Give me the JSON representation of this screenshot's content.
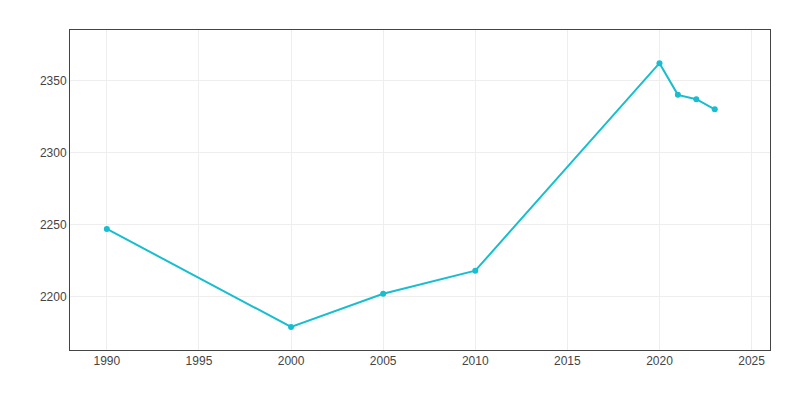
{
  "chart_data": {
    "type": "line",
    "x": [
      1990,
      2000,
      2005,
      2010,
      2020,
      2021,
      2022,
      2023
    ],
    "values": [
      2247,
      2179,
      2202,
      2218,
      2362,
      2340,
      2337,
      2330
    ],
    "color": "#17becf",
    "marker": "circle",
    "xlim": [
      1988,
      2026
    ],
    "ylim": [
      2163,
      2385
    ],
    "xticks": [
      1990,
      1995,
      2000,
      2005,
      2010,
      2015,
      2020,
      2025
    ],
    "yticks": [
      2200,
      2250,
      2300,
      2350
    ],
    "grid": true
  }
}
